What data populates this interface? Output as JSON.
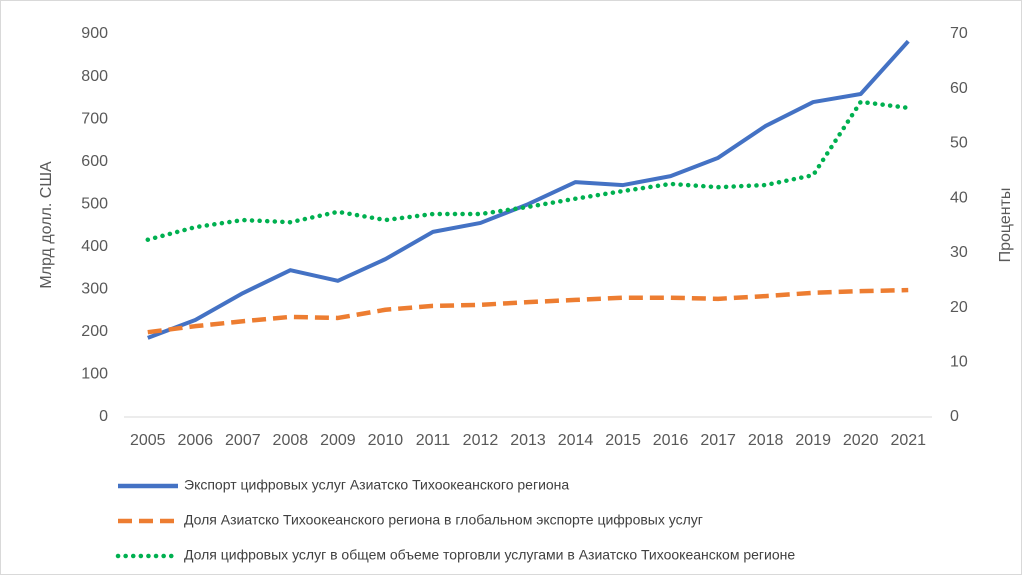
{
  "chart_data": {
    "type": "line",
    "categories": [
      "2005",
      "2006",
      "2007",
      "2008",
      "2009",
      "2010",
      "2011",
      "2012",
      "2013",
      "2014",
      "2015",
      "2016",
      "2017",
      "2018",
      "2019",
      "2020",
      "2021"
    ],
    "ylabel": "Млрд долл. США",
    "y2label": "Проценты",
    "ylim": [
      0,
      900
    ],
    "yticks": [
      0,
      100,
      200,
      300,
      400,
      500,
      600,
      700,
      800,
      900
    ],
    "y2lim": [
      0,
      70
    ],
    "y2ticks": [
      0,
      10,
      20,
      30,
      40,
      50,
      60,
      70
    ],
    "legend": "bottom",
    "series": [
      {
        "name": "Экспорт цифровых услуг Азиатско Тихоокеанского региона",
        "color": "#4472c4",
        "style": "solid",
        "axis": "y",
        "values": [
          186,
          228,
          291,
          345,
          320,
          371,
          435,
          456,
          500,
          552,
          545,
          566,
          609,
          684,
          740,
          759,
          883
        ]
      },
      {
        "name": "Доля Азиатско Тихоокеанского региона в глобальном экспорте цифровых услуг",
        "color": "#ed7d31",
        "style": "dashed",
        "axis": "y2",
        "values": [
          15.5,
          16.6,
          17.5,
          18.3,
          18.1,
          19.6,
          20.3,
          20.5,
          21.0,
          21.4,
          21.8,
          21.8,
          21.6,
          22.1,
          22.7,
          23.0,
          23.2
        ]
      },
      {
        "name": "Доля цифровых услуг в общем объеме торговли услугами в Азиатско Тихоокеанском регионе",
        "color": "#00b050",
        "style": "dotted",
        "axis": "y2",
        "values": [
          32.4,
          34.7,
          36.0,
          35.6,
          37.5,
          36.0,
          37.1,
          37.1,
          38.4,
          39.9,
          41.3,
          42.6,
          42.0,
          42.4,
          44.2,
          57.6,
          56.5
        ]
      }
    ]
  }
}
